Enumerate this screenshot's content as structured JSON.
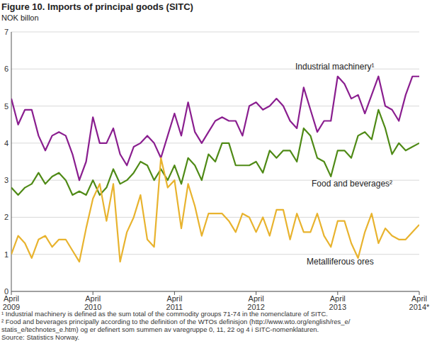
{
  "chart_data": {
    "type": "line",
    "title": "Figure 10.  Imports of principal goods (SITC)",
    "subtitle": "NOK billon",
    "categories": [
      "April 2009",
      null,
      null,
      null,
      null,
      null,
      null,
      null,
      null,
      null,
      null,
      null,
      "April 2010",
      null,
      null,
      null,
      null,
      null,
      null,
      null,
      null,
      null,
      null,
      null,
      "April 2011",
      null,
      null,
      null,
      null,
      null,
      null,
      null,
      null,
      null,
      null,
      null,
      "April 2012",
      null,
      null,
      null,
      null,
      null,
      null,
      null,
      null,
      null,
      null,
      null,
      "April 2013",
      null,
      null,
      null,
      null,
      null,
      null,
      null,
      null,
      null,
      null,
      null,
      "April 2014*"
    ],
    "ylim": [
      0,
      7
    ],
    "yticks": [
      0,
      1,
      2,
      3,
      4,
      5,
      6,
      7
    ],
    "grid": true,
    "series": [
      {
        "name": "Industrial machinery¹",
        "color": "#8a1e8f",
        "values": [
          5.2,
          4.5,
          4.9,
          4.9,
          4.2,
          3.8,
          4.2,
          4.3,
          4.2,
          3.7,
          3.0,
          3.5,
          4.7,
          4.0,
          4.0,
          4.4,
          3.7,
          3.4,
          3.9,
          4.0,
          4.2,
          4.0,
          3.6,
          4.2,
          4.8,
          4.2,
          5.1,
          4.3,
          4.0,
          4.3,
          4.6,
          4.7,
          4.6,
          4.6,
          4.2,
          5.0,
          5.1,
          4.9,
          5.0,
          5.2,
          5.0,
          4.6,
          4.4,
          5.5,
          4.9,
          4.3,
          4.6,
          4.6,
          5.8,
          5.6,
          5.2,
          5.3,
          4.8,
          5.3,
          5.8,
          5.0,
          4.9,
          4.6,
          5.3,
          5.8,
          5.8
        ]
      },
      {
        "name": "Food and beverages²",
        "color": "#4f8a16",
        "values": [
          2.8,
          2.6,
          2.8,
          2.9,
          3.2,
          2.9,
          3.1,
          3.2,
          3.0,
          2.6,
          2.7,
          2.6,
          3.0,
          2.6,
          2.8,
          3.3,
          2.9,
          3.0,
          3.2,
          3.5,
          3.4,
          3.0,
          3.3,
          3.0,
          3.4,
          2.9,
          3.6,
          3.4,
          3.0,
          3.7,
          3.5,
          4.0,
          4.0,
          3.4,
          3.4,
          3.4,
          3.5,
          3.2,
          3.8,
          3.6,
          3.8,
          3.8,
          3.5,
          4.4,
          4.2,
          3.6,
          3.5,
          3.1,
          3.8,
          3.8,
          3.6,
          4.2,
          4.3,
          4.1,
          4.9,
          4.4,
          3.7,
          4.0,
          3.8,
          3.9,
          4.0
        ]
      },
      {
        "name": "Metalliferous ores",
        "color": "#e8b32e",
        "values": [
          1.0,
          1.5,
          1.3,
          0.9,
          1.4,
          1.5,
          1.2,
          1.4,
          1.4,
          1.1,
          0.8,
          1.7,
          2.5,
          2.9,
          1.9,
          2.9,
          0.8,
          1.6,
          2.0,
          2.6,
          1.4,
          1.2,
          3.6,
          2.8,
          3.0,
          1.7,
          2.9,
          2.3,
          1.5,
          2.1,
          2.1,
          2.1,
          1.9,
          1.6,
          2.1,
          2.0,
          1.6,
          2.0,
          1.5,
          2.2,
          2.2,
          1.4,
          2.1,
          1.6,
          1.6,
          2.1,
          1.5,
          1.2,
          1.9,
          1.9,
          1.3,
          0.9,
          1.6,
          2.1,
          1.3,
          1.7,
          1.5,
          1.4,
          1.4,
          1.6,
          1.8
        ]
      }
    ],
    "footnotes": [
      "¹  Industrial machinery is defined as the sum total of the commodity groups 71-74 in the nomenclature of SITC.",
      "²  Food and beverages principally according to the definition of the WTOs definisjon (http://www.wto.org/english/res_e/",
      "statis_e/technotes_e.htm) og er definert som summen av varegruppe 0, 11, 22 og 4 i SITC-nomenklaturen.",
      "Source: Statistics Norway."
    ]
  }
}
